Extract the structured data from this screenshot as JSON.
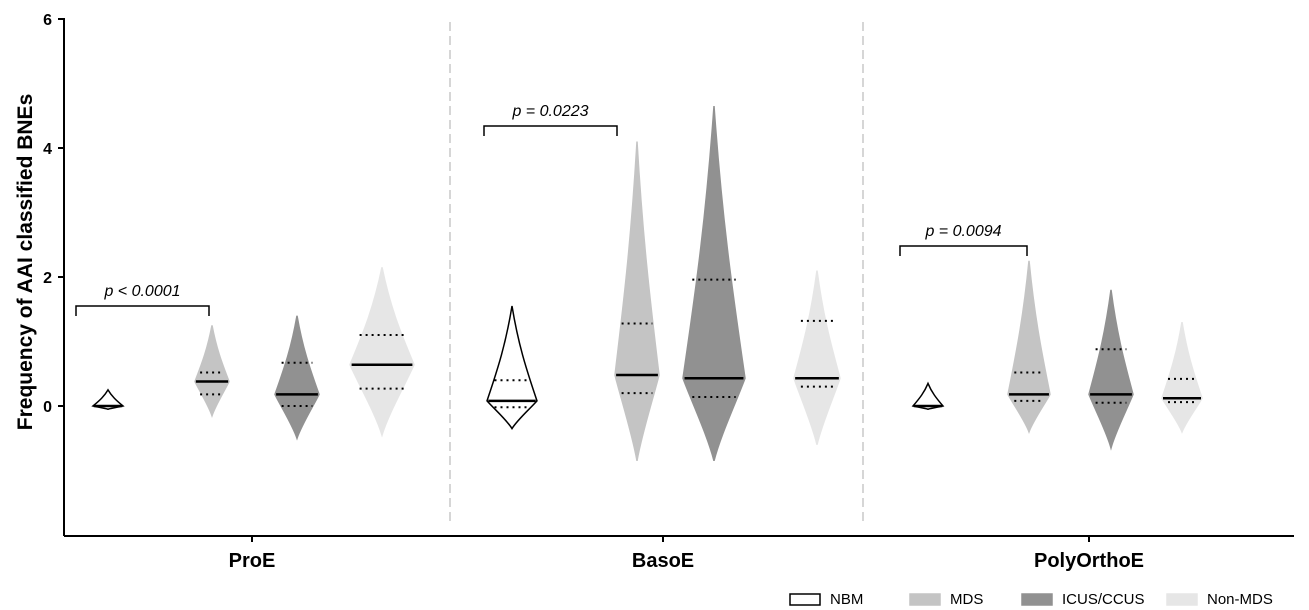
{
  "chart_data": {
    "type": "violin",
    "ylabel": "Frequency of AAI classified BNEs",
    "xlabel": "",
    "ylim": [
      -2,
      6
    ],
    "yticks": [
      0,
      2,
      4,
      6
    ],
    "categories": [
      "ProE",
      "BasoE",
      "PolyOrthoE"
    ],
    "legend": [
      {
        "name": "NBM",
        "color": "#ffffff"
      },
      {
        "name": "MDS",
        "color": "#c4c4c4"
      },
      {
        "name": "ICUS/CCUS",
        "color": "#919191"
      },
      {
        "name": "Non-MDS",
        "color": "#e6e6e6"
      }
    ],
    "legend_position": "bottom-right",
    "p_values": [
      {
        "group": "ProE",
        "text": "p < 0.0001",
        "between": [
          "NBM",
          "MDS"
        ]
      },
      {
        "group": "BasoE",
        "text": "p = 0.0223",
        "between": [
          "NBM",
          "MDS"
        ]
      },
      {
        "group": "PolyOrthoE",
        "text": "p = 0.0094",
        "between": [
          "NBM",
          "MDS"
        ]
      }
    ],
    "series": [
      {
        "group": "ProE",
        "name": "NBM",
        "min": -0.05,
        "max": 0.25,
        "q1": 0.0,
        "median": 0.0,
        "q3": 0.0
      },
      {
        "group": "ProE",
        "name": "MDS",
        "min": -0.15,
        "max": 1.25,
        "q1": 0.18,
        "median": 0.38,
        "q3": 0.52
      },
      {
        "group": "ProE",
        "name": "ICUS/CCUS",
        "min": -0.5,
        "max": 1.4,
        "q1": 0.0,
        "median": 0.18,
        "q3": 0.67
      },
      {
        "group": "ProE",
        "name": "Non-MDS",
        "min": -0.45,
        "max": 2.15,
        "q1": 0.27,
        "median": 0.64,
        "q3": 1.1
      },
      {
        "group": "BasoE",
        "name": "NBM",
        "min": -0.35,
        "max": 1.55,
        "q1": -0.02,
        "median": 0.08,
        "q3": 0.4
      },
      {
        "group": "BasoE",
        "name": "MDS",
        "min": -0.85,
        "max": 4.1,
        "q1": 0.2,
        "median": 0.48,
        "q3": 1.28
      },
      {
        "group": "BasoE",
        "name": "ICUS/CCUS",
        "min": -0.85,
        "max": 4.65,
        "q1": 0.14,
        "median": 0.43,
        "q3": 1.96
      },
      {
        "group": "BasoE",
        "name": "Non-MDS",
        "min": -0.6,
        "max": 2.1,
        "q1": 0.3,
        "median": 0.43,
        "q3": 1.32
      },
      {
        "group": "PolyOrthoE",
        "name": "NBM",
        "min": -0.05,
        "max": 0.35,
        "q1": 0.0,
        "median": 0.0,
        "q3": 0.0
      },
      {
        "group": "PolyOrthoE",
        "name": "MDS",
        "min": -0.4,
        "max": 2.25,
        "q1": 0.08,
        "median": 0.18,
        "q3": 0.52
      },
      {
        "group": "PolyOrthoE",
        "name": "ICUS/CCUS",
        "min": -0.65,
        "max": 1.8,
        "q1": 0.05,
        "median": 0.18,
        "q3": 0.88
      },
      {
        "group": "PolyOrthoE",
        "name": "Non-MDS",
        "min": -0.4,
        "max": 1.3,
        "q1": 0.06,
        "median": 0.12,
        "q3": 0.42
      }
    ]
  }
}
